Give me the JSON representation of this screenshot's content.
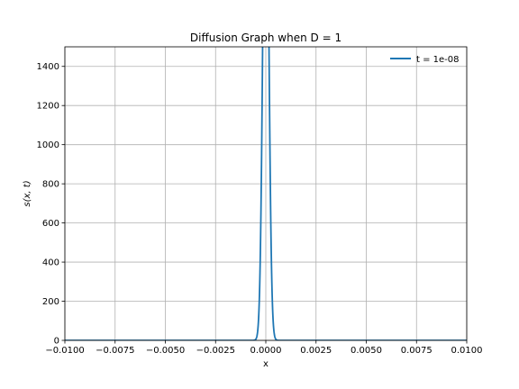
{
  "chart_data": {
    "type": "line",
    "title": "Diffusion Graph when D = 1",
    "xlabel": "x",
    "ylabel": "s(x, t)",
    "xlim": [
      -0.01,
      0.01
    ],
    "ylim": [
      0,
      1500
    ],
    "xticks": [
      -0.01,
      -0.0075,
      -0.005,
      -0.0025,
      0.0,
      0.0025,
      0.005,
      0.0075,
      0.01
    ],
    "xtick_labels": [
      "−0.0100",
      "−0.0075",
      "−0.0050",
      "−0.0025",
      "0.0000",
      "0.0025",
      "0.0050",
      "0.0075",
      "0.0100"
    ],
    "yticks": [
      0,
      200,
      400,
      600,
      800,
      1000,
      1200,
      1400
    ],
    "ytick_labels": [
      "0",
      "200",
      "400",
      "600",
      "800",
      "1000",
      "1200",
      "1400"
    ],
    "grid": true,
    "legend_position": "top-right",
    "series": [
      {
        "name": "t = 1e-08",
        "color": "#1f77b4",
        "function": "gaussian",
        "D": 1,
        "t": 1e-08
      }
    ]
  }
}
